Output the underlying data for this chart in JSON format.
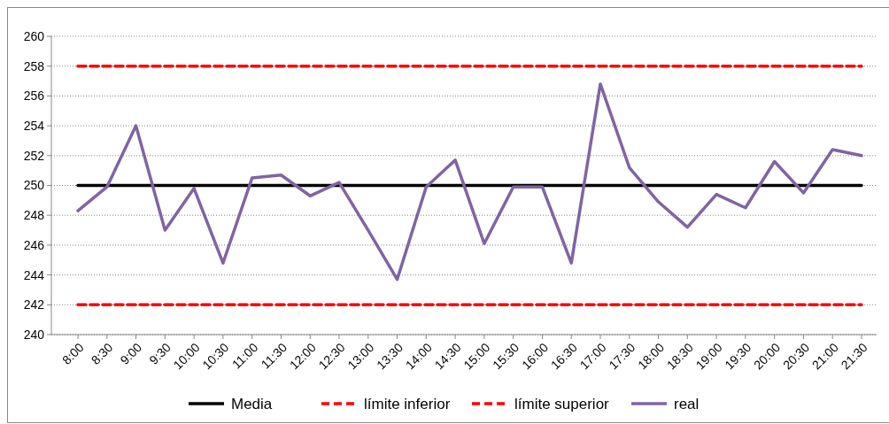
{
  "chart_data": {
    "type": "line",
    "categories": [
      "8:00",
      "8:30",
      "9:00",
      "9:30",
      "10:00",
      "10:30",
      "11:00",
      "11:30",
      "12:00",
      "12:30",
      "13:00",
      "13:30",
      "14:00",
      "14:30",
      "15:00",
      "15:30",
      "16:00",
      "16:30",
      "17:00",
      "17:30",
      "18:00",
      "18:30",
      "19:00",
      "19:30",
      "20:00",
      "20:30",
      "21:00",
      "21:30"
    ],
    "series": [
      {
        "name": "Media",
        "color": "#000000",
        "line_style": "solid",
        "values": [
          250,
          250,
          250,
          250,
          250,
          250,
          250,
          250,
          250,
          250,
          250,
          250,
          250,
          250,
          250,
          250,
          250,
          250,
          250,
          250,
          250,
          250,
          250,
          250,
          250,
          250,
          250,
          250
        ]
      },
      {
        "name": "límite inferior",
        "color": "#ff0000",
        "line_style": "dashed",
        "values": [
          242,
          242,
          242,
          242,
          242,
          242,
          242,
          242,
          242,
          242,
          242,
          242,
          242,
          242,
          242,
          242,
          242,
          242,
          242,
          242,
          242,
          242,
          242,
          242,
          242,
          242,
          242,
          242
        ]
      },
      {
        "name": "límite superior",
        "color": "#ff0000",
        "line_style": "dashed",
        "values": [
          258,
          258,
          258,
          258,
          258,
          258,
          258,
          258,
          258,
          258,
          258,
          258,
          258,
          258,
          258,
          258,
          258,
          258,
          258,
          258,
          258,
          258,
          258,
          258,
          258,
          258,
          258,
          258
        ]
      },
      {
        "name": "real",
        "color": "#8064a2",
        "line_style": "solid",
        "values": [
          248.3,
          249.9,
          254.0,
          247.0,
          249.8,
          244.8,
          250.5,
          250.7,
          249.3,
          250.2,
          247.0,
          243.7,
          249.9,
          251.7,
          246.1,
          249.9,
          249.9,
          244.8,
          256.8,
          251.2,
          248.9,
          247.2,
          249.4,
          248.5,
          251.6,
          249.5,
          252.4,
          252.0
        ]
      }
    ],
    "ylim": [
      240,
      260
    ],
    "yticks": [
      240,
      242,
      244,
      246,
      248,
      250,
      252,
      254,
      256,
      258,
      260
    ],
    "grid": "y",
    "legend": "bottom",
    "marker": "none"
  }
}
